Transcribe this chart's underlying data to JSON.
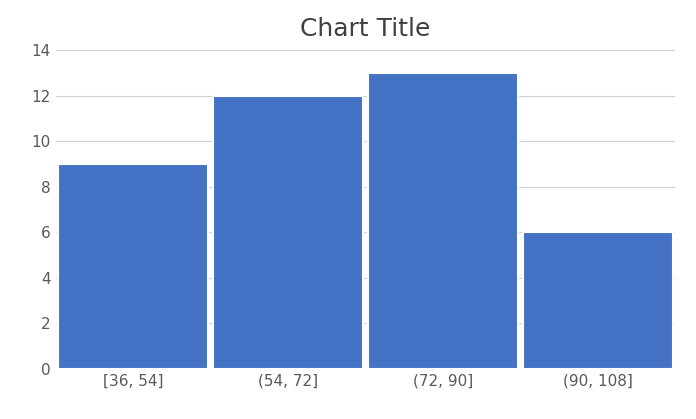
{
  "title": "Chart Title",
  "title_fontsize": 18,
  "title_color": "#404040",
  "categories": [
    "[36, 54]",
    "(54, 72]",
    "(72, 90]",
    "(90, 108]"
  ],
  "values": [
    9,
    12,
    13,
    6
  ],
  "bar_color": "#4472C4",
  "ylim": [
    0,
    14
  ],
  "yticks": [
    0,
    2,
    4,
    6,
    8,
    10,
    12,
    14
  ],
  "background_color": "#ffffff",
  "plot_bg_color": "#ffffff",
  "grid_color": "#d0d0d0",
  "tick_fontsize": 11,
  "tick_color": "#595959",
  "bar_width": 0.97,
  "figsize": [
    6.96,
    4.19
  ],
  "dpi": 100
}
